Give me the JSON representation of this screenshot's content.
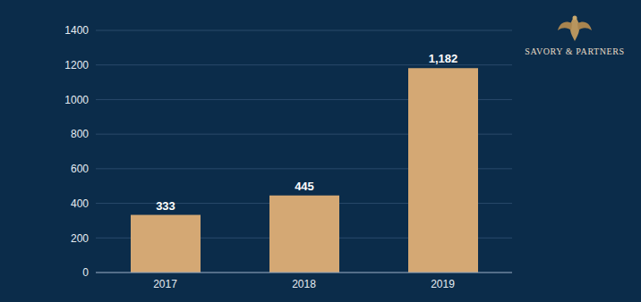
{
  "chart_data": {
    "type": "bar",
    "categories": [
      "2017",
      "2018",
      "2019"
    ],
    "values": [
      333,
      445,
      1182
    ],
    "value_labels": [
      "333",
      "445",
      "1,182"
    ],
    "color": "#d4a874",
    "ylim": [
      0,
      1400
    ],
    "yticks": [
      0,
      200,
      400,
      600,
      800,
      1000,
      1200,
      1400
    ],
    "grid": true,
    "data_labels": true,
    "annotations": [
      "SAVORY & PARTNERS"
    ]
  }
}
